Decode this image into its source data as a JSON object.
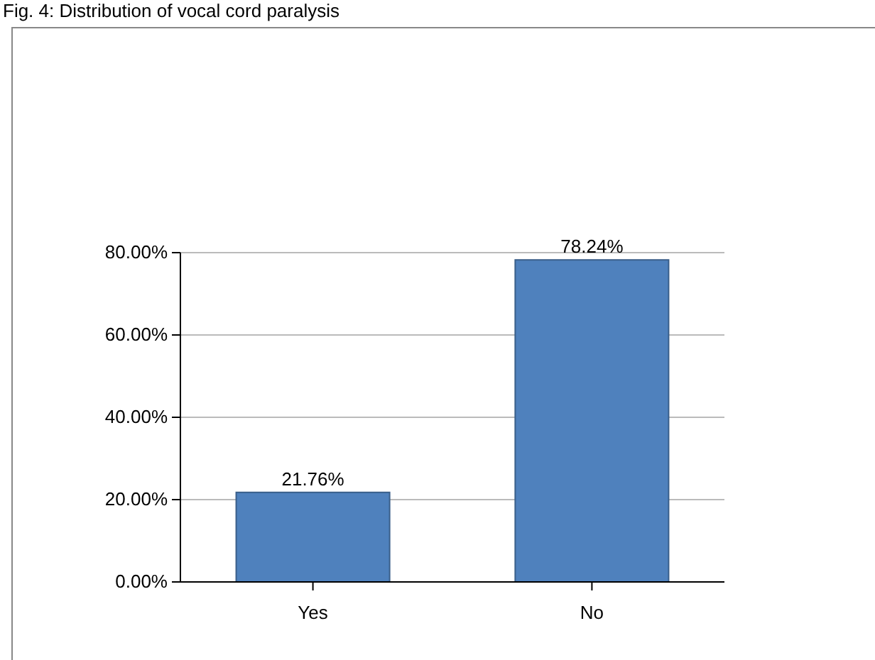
{
  "chart_data": {
    "type": "bar",
    "title": "Fig. 4: Distribution of vocal cord paralysis",
    "categories": [
      "Yes",
      "No"
    ],
    "values": [
      21.76,
      78.24
    ],
    "value_labels": [
      "21.76%",
      "78.24%"
    ],
    "color": "#4f81bd",
    "ylim": [
      0,
      80
    ],
    "yticks": [
      {
        "value": 0,
        "label": "0.00%"
      },
      {
        "value": 20,
        "label": "20.00%"
      },
      {
        "value": 40,
        "label": "40.00%"
      },
      {
        "value": 60,
        "label": "60.00%"
      },
      {
        "value": 80,
        "label": "80.00%"
      }
    ],
    "grid": "y"
  }
}
